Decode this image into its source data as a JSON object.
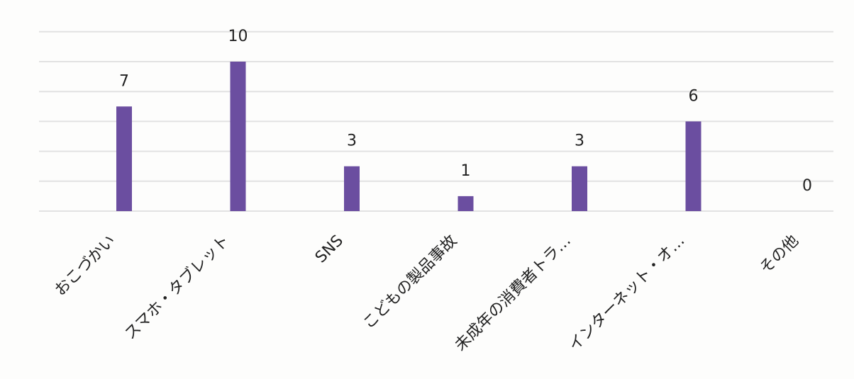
{
  "chart_data": {
    "type": "bar",
    "title": "",
    "xlabel": "",
    "ylabel": "",
    "categories": [
      "おこづかい",
      "スマホ・タブレット",
      "SNS",
      "こどもの製品事故",
      "未成年の消費者トラ…",
      "インターネット・オ…",
      "その他"
    ],
    "values": [
      7,
      10,
      3,
      1,
      3,
      6,
      0
    ],
    "data_labels": [
      "7",
      "10",
      "3",
      "1",
      "3",
      "6",
      "0"
    ],
    "ylim": [
      0,
      10
    ],
    "grid": true,
    "legend": "none",
    "colors": {
      "bar": "#6b4ea0",
      "grid": "#e2e2e2",
      "text": "#222222"
    }
  }
}
